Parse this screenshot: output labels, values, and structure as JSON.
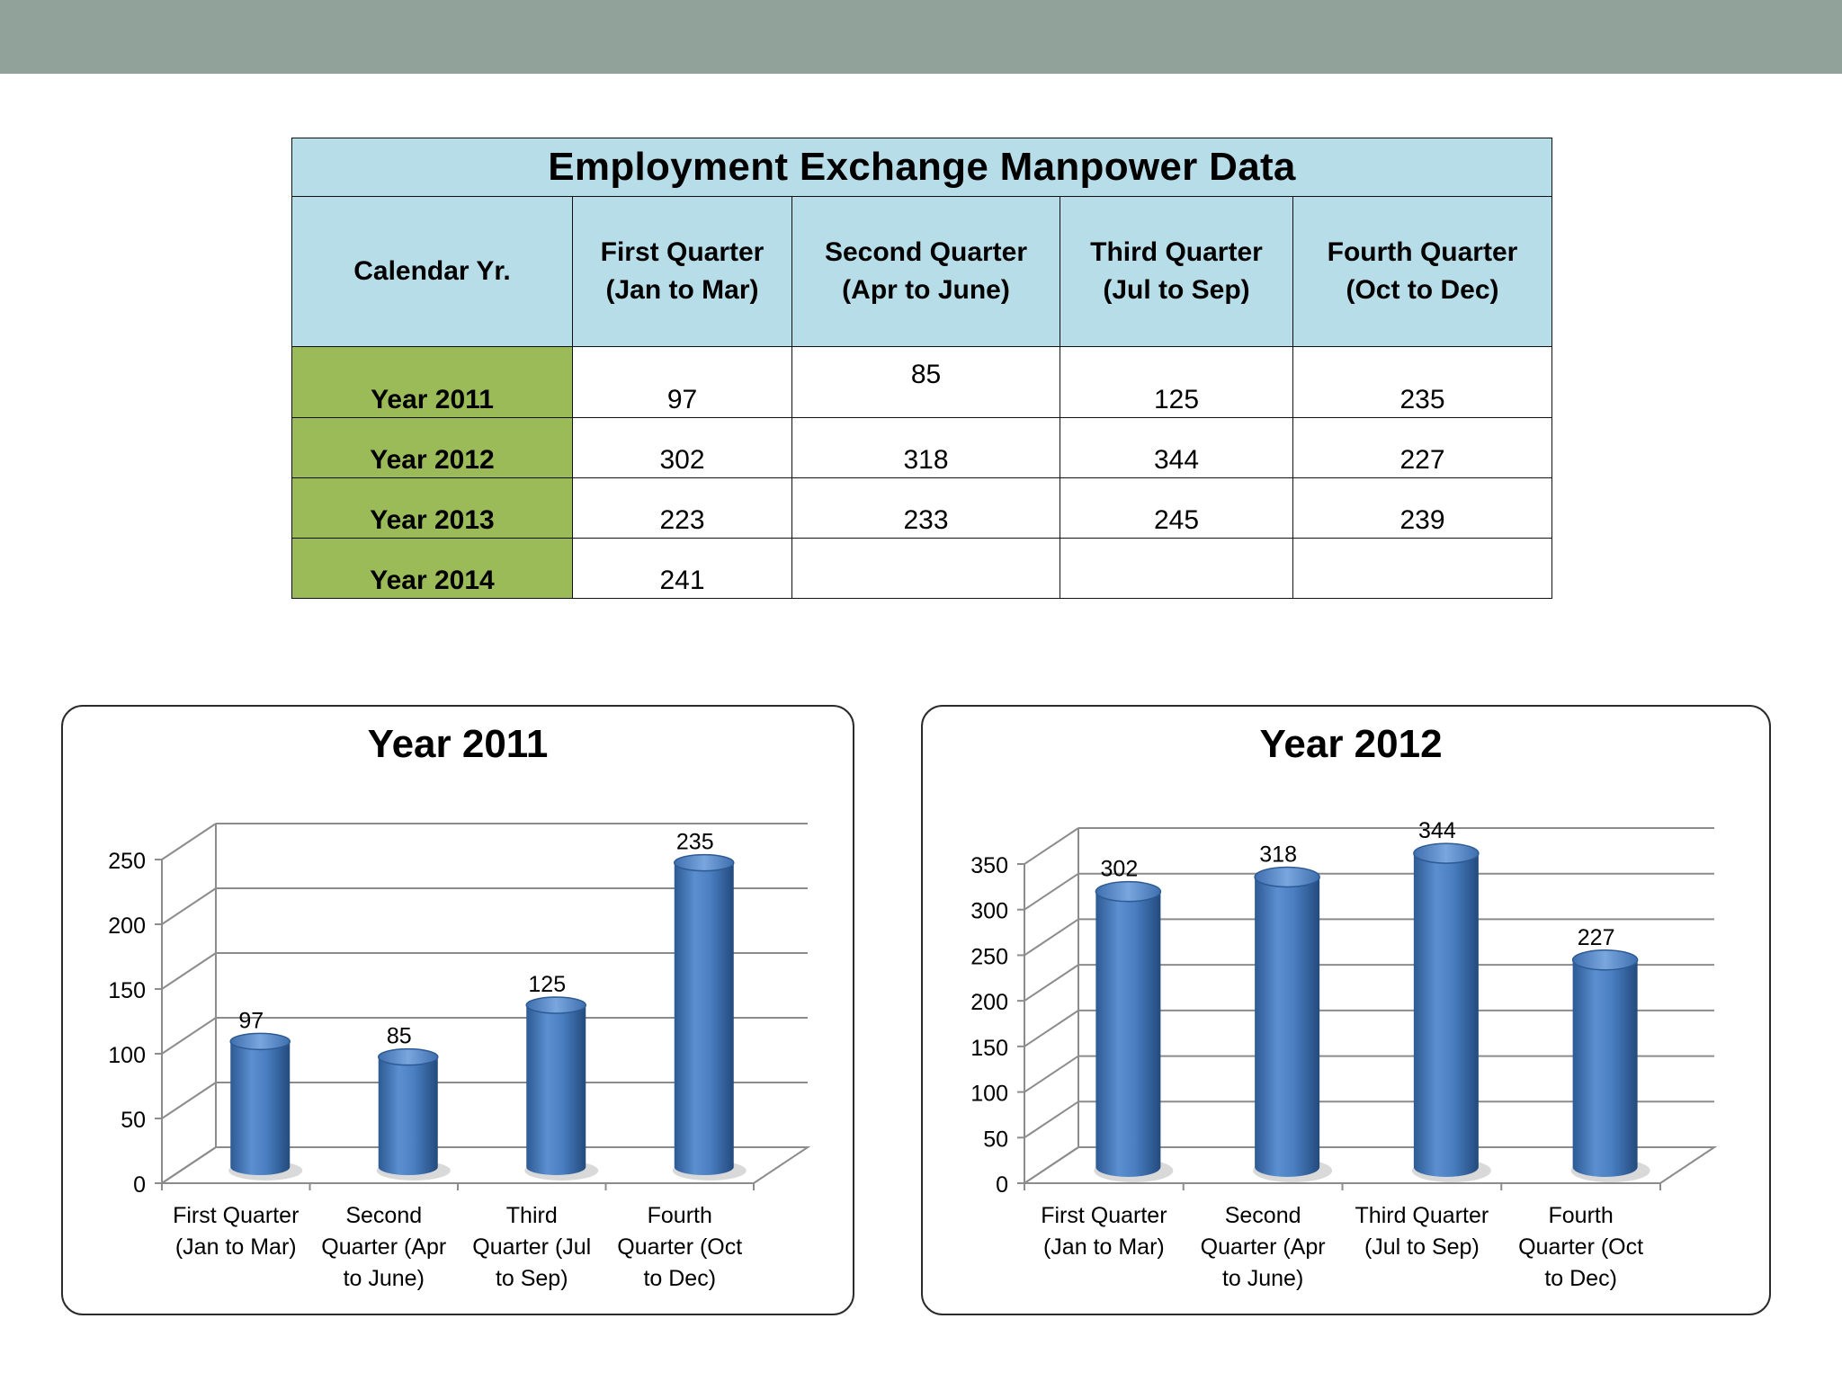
{
  "table": {
    "title": "Employment Exchange Manpower Data",
    "header": {
      "calendar_label": "Calendar Yr.",
      "quarters": [
        {
          "line1": "First Quarter",
          "line2": "(Jan to Mar)"
        },
        {
          "line1": "Second Quarter",
          "line2": "(Apr to June)"
        },
        {
          "line1": "Third Quarter",
          "line2": "(Jul to Sep)"
        },
        {
          "line1": "Fourth Quarter",
          "line2": "(Oct to Dec)"
        }
      ]
    },
    "rows": [
      {
        "year": "Year 2011",
        "values": [
          "97",
          "85",
          "125",
          "235"
        ]
      },
      {
        "year": "Year 2012",
        "values": [
          "302",
          "318",
          "344",
          "227"
        ]
      },
      {
        "year": "Year 2013",
        "values": [
          "223",
          "233",
          "245",
          "239"
        ]
      },
      {
        "year": "Year 2014",
        "values": [
          "241",
          "",
          "",
          ""
        ]
      }
    ]
  },
  "chart_data": [
    {
      "type": "bar",
      "style": "3d-cylinder",
      "title": "Year 2011",
      "categories": [
        [
          "First Quarter",
          "(Jan to Mar)"
        ],
        [
          "Second",
          "Quarter (Apr",
          "to June)"
        ],
        [
          "Third",
          "Quarter (Jul",
          "to Sep)"
        ],
        [
          "Fourth",
          "Quarter (Oct",
          "to Dec)"
        ]
      ],
      "values": [
        97,
        85,
        125,
        235
      ],
      "ylim": [
        0,
        250
      ],
      "yticks": [
        0,
        50,
        100,
        150,
        200,
        250
      ],
      "grid": true,
      "bar_color": "#4f81bd"
    },
    {
      "type": "bar",
      "style": "3d-cylinder",
      "title": "Year 2012",
      "categories": [
        [
          "First Quarter",
          "(Jan to Mar)"
        ],
        [
          "Second",
          "Quarter (Apr",
          "to June)"
        ],
        [
          "Third Quarter",
          "(Jul to Sep)"
        ],
        [
          "Fourth",
          "Quarter (Oct",
          "to Dec)"
        ]
      ],
      "values": [
        302,
        318,
        344,
        227
      ],
      "ylim": [
        0,
        350
      ],
      "yticks": [
        0,
        50,
        100,
        150,
        200,
        250,
        300,
        350
      ],
      "grid": true,
      "bar_color": "#4f81bd"
    }
  ]
}
